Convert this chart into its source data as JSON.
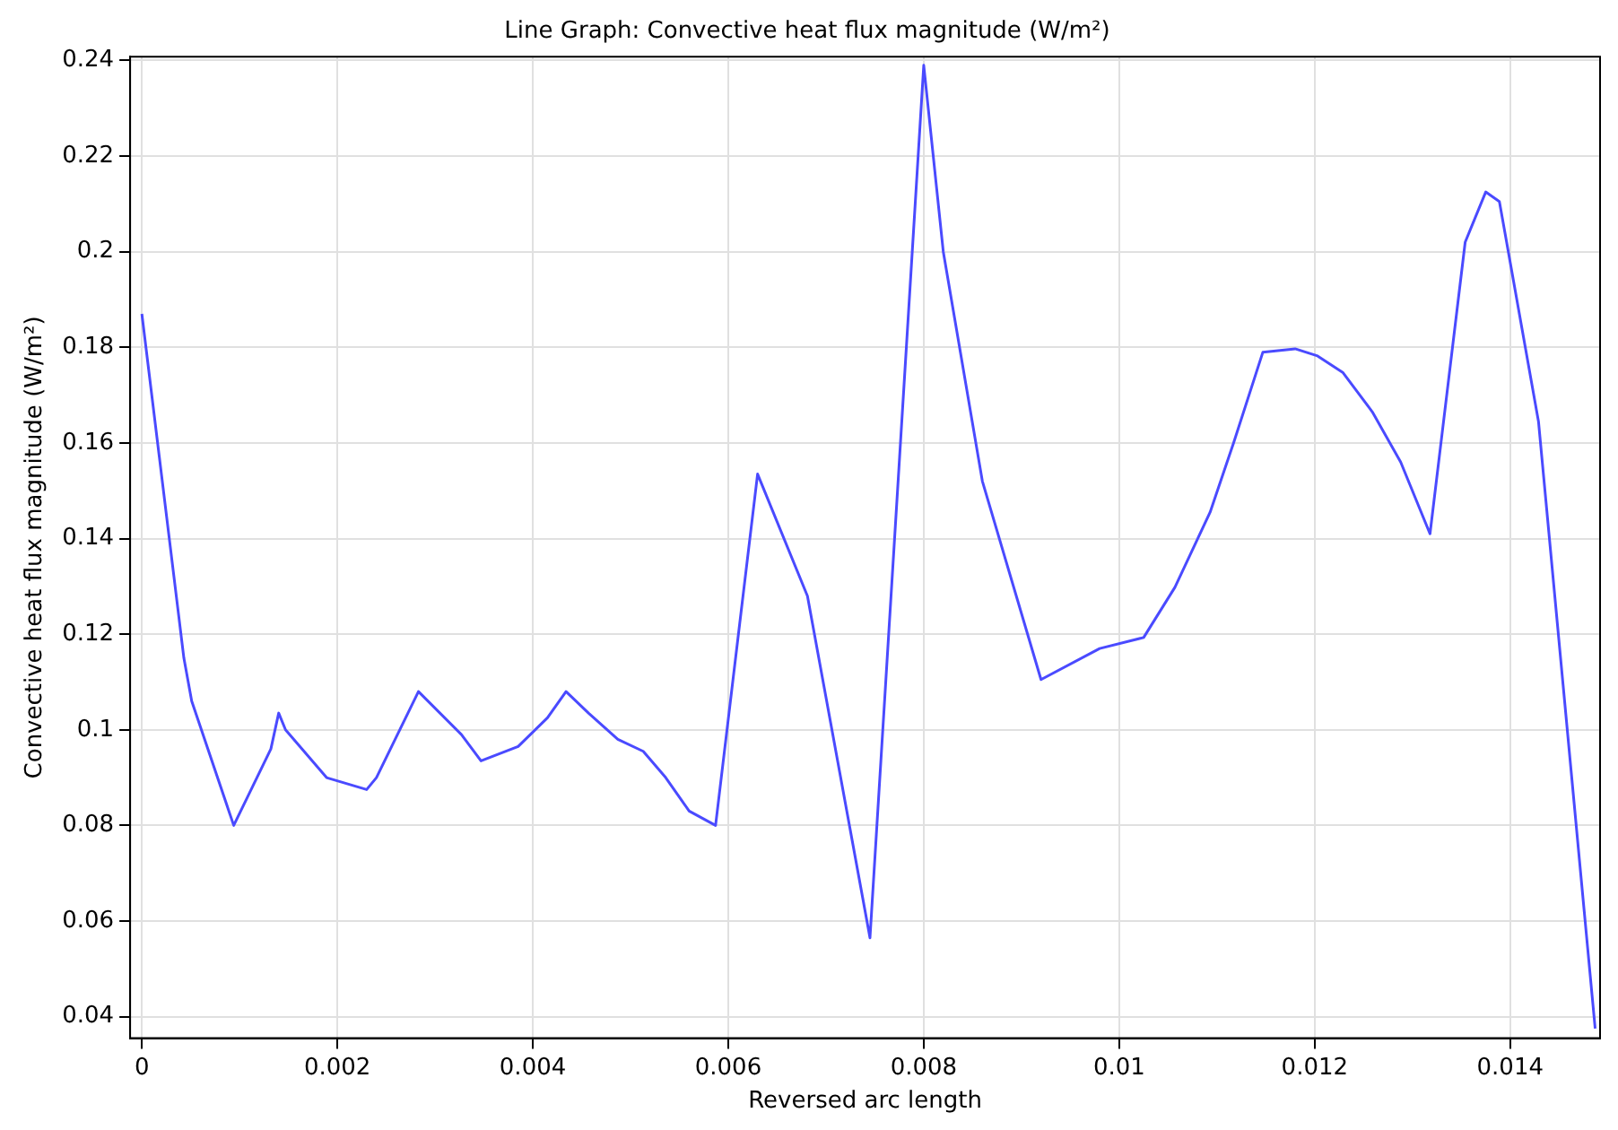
{
  "chart_data": {
    "type": "line",
    "title": "Line Graph: Convective heat flux magnitude (W/m²)",
    "xlabel": "Reversed arc length",
    "ylabel": "Convective heat flux magnitude (W/m²)",
    "x": [
      0,
      0.00043,
      0.00051,
      0.00094,
      0.00132,
      0.0014,
      0.00147,
      0.00189,
      0.0023,
      0.0024,
      0.00283,
      0.00327,
      0.00347,
      0.00385,
      0.00415,
      0.00434,
      0.00457,
      0.00487,
      0.00513,
      0.00536,
      0.0056,
      0.00587,
      0.0063,
      0.00681,
      0.00745,
      0.008,
      0.0082,
      0.0086,
      0.0092,
      0.0098,
      0.01025,
      0.01057,
      0.01093,
      0.01117,
      0.01147,
      0.0118,
      0.01203,
      0.01229,
      0.01259,
      0.01288,
      0.01318,
      0.01354,
      0.01375,
      0.01389,
      0.01429,
      0.01487
    ],
    "series": [
      {
        "color": "#4a4aff",
        "values": [
          0.187,
          0.115,
          0.106,
          0.08,
          0.096,
          0.1035,
          0.1,
          0.09,
          0.0875,
          0.09,
          0.108,
          0.099,
          0.0935,
          0.0965,
          0.1025,
          0.108,
          0.1035,
          0.098,
          0.0955,
          0.09,
          0.083,
          0.08,
          0.1535,
          0.128,
          0.0565,
          0.239,
          0.2,
          0.152,
          0.1105,
          0.117,
          0.1193,
          0.1298,
          0.1455,
          0.16,
          0.179,
          0.1797,
          0.1782,
          0.1747,
          0.1665,
          0.156,
          0.141,
          0.202,
          0.2125,
          0.2105,
          0.1645,
          0.0375
        ]
      }
    ],
    "xlim": [
      -0.00012,
      0.01492
    ],
    "xticks": [
      0,
      0.002,
      0.004,
      0.006,
      0.008,
      0.01,
      0.012,
      0.014
    ],
    "ylim": [
      0.0355,
      0.2408
    ],
    "yticks": [
      0.04,
      0.06,
      0.08,
      0.1,
      0.12,
      0.14,
      0.16,
      0.18,
      0.2,
      0.22,
      0.24
    ],
    "grid": true,
    "legend": false,
    "marker": "none",
    "line_style": "solid"
  }
}
